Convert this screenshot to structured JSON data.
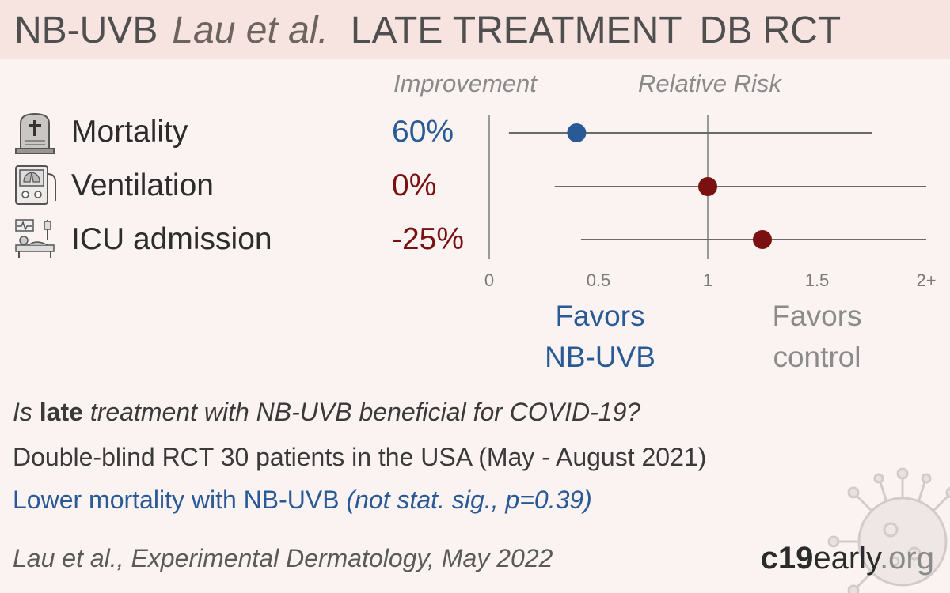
{
  "header": {
    "drug": "NB-UVB",
    "author": "Lau et al.",
    "stage": "LATE TREATMENT",
    "design": "DB RCT"
  },
  "columns": {
    "improvement": "Improvement",
    "relative_risk": "Relative Risk"
  },
  "outcomes": [
    {
      "label": "Mortality",
      "improvement": "60%",
      "icon": "gravestone-icon",
      "color": "#2a5a96"
    },
    {
      "label": "Ventilation",
      "improvement": "0%",
      "icon": "ventilator-icon",
      "color": "#7a1010"
    },
    {
      "label": "ICU admission",
      "improvement": "-25%",
      "icon": "icu-bed-icon",
      "color": "#7a1010"
    }
  ],
  "favors": {
    "treatment_line1": "Favors",
    "treatment_line2": "NB-UVB",
    "control_line1": "Favors",
    "control_line2": "control"
  },
  "summary": {
    "question_pre": "Is ",
    "question_bold": "late",
    "question_post": " treatment with NB-UVB beneficial for COVID-19?",
    "design": "Double-blind RCT 30 patients in the USA (May - August 2021)",
    "result_pre": "Lower mortality with NB-UVB ",
    "result_it": "(not stat. sig., p=0.39)"
  },
  "citation": "Lau et al., Experimental Dermatology, May 2022",
  "brand": {
    "c19": "c19",
    "early": "early",
    "org": ".org"
  },
  "colors": {
    "benefit": "#2a5a96",
    "harm": "#7a1010",
    "axis": "#9a9a9a",
    "ci_line": "#6a6a6a"
  },
  "chart_data": {
    "type": "scatter",
    "title": "Relative Risk",
    "xlim": [
      0,
      2
    ],
    "ticks": [
      {
        "value": 0,
        "label": "0"
      },
      {
        "value": 0.5,
        "label": "0.5"
      },
      {
        "value": 1,
        "label": "1"
      },
      {
        "value": 1.5,
        "label": "1.5"
      },
      {
        "value": 2,
        "label": "2+"
      }
    ],
    "reference_line": 1,
    "series": [
      {
        "name": "Mortality",
        "rr": 0.4,
        "ci_low": 0.09,
        "ci_high": 1.75,
        "color": "#2a5a96"
      },
      {
        "name": "Ventilation",
        "rr": 1.0,
        "ci_low": 0.3,
        "ci_high": 2.0,
        "color": "#7a1010"
      },
      {
        "name": "ICU admission",
        "rr": 1.25,
        "ci_low": 0.42,
        "ci_high": 2.0,
        "color": "#7a1010"
      }
    ]
  }
}
